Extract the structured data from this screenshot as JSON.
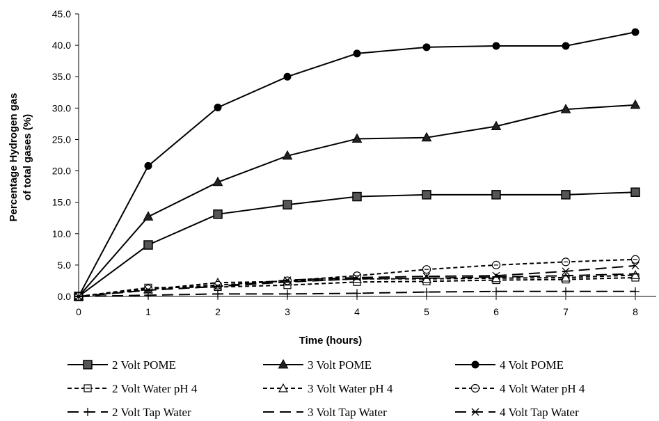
{
  "chart_data": {
    "type": "line",
    "title": "",
    "xlabel": "Time (hours)",
    "ylabel_lines": [
      "Percentage Hydrogen gas",
      "of total gases (%)"
    ],
    "x": [
      0,
      1,
      2,
      3,
      4,
      5,
      6,
      7,
      8
    ],
    "x_tick_labels": [
      "0",
      "1",
      "2",
      "3",
      "4",
      "5",
      "6",
      "7",
      "8"
    ],
    "xlim": [
      0,
      8
    ],
    "ylim": [
      0,
      45
    ],
    "y_ticks": [
      0,
      5,
      10,
      15,
      20,
      25,
      30,
      35,
      40,
      45
    ],
    "y_tick_labels": [
      "0.0",
      "5.0",
      "10.0",
      "15.0",
      "20.0",
      "25.0",
      "30.0",
      "35.0",
      "40.0",
      "45.0"
    ],
    "grid": false,
    "legend_position": "bottom",
    "series": [
      {
        "name": "2 Volt POME",
        "style": "solid",
        "marker": "square-filled",
        "color": "#000000",
        "values": [
          0,
          8.2,
          13.1,
          14.6,
          15.9,
          16.2,
          16.2,
          16.2,
          16.6
        ]
      },
      {
        "name": "3 Volt POME",
        "style": "solid",
        "marker": "triangle-filled",
        "color": "#000000",
        "values": [
          0,
          12.7,
          18.2,
          22.4,
          25.1,
          25.3,
          27.1,
          29.8,
          30.5
        ]
      },
      {
        "name": "4 Volt POME",
        "style": "solid",
        "marker": "circle-filled",
        "color": "#000000",
        "values": [
          0,
          20.8,
          30.1,
          35.0,
          38.7,
          39.7,
          39.9,
          39.9,
          42.1
        ]
      },
      {
        "name": "2 Volt Water pH 4",
        "style": "short-dash",
        "marker": "square-open-line",
        "color": "#000000",
        "values": [
          0,
          1.4,
          1.5,
          1.8,
          2.3,
          2.4,
          2.6,
          2.7,
          3.0
        ]
      },
      {
        "name": "3 Volt Water pH 4",
        "style": "short-dash",
        "marker": "triangle-open",
        "color": "#000000",
        "values": [
          0,
          1.1,
          2.2,
          2.4,
          2.8,
          2.8,
          2.9,
          3.0,
          3.4
        ]
      },
      {
        "name": "4 Volt Water pH 4",
        "style": "short-dash",
        "marker": "circle-open-line",
        "color": "#000000",
        "values": [
          0,
          1.2,
          1.8,
          2.5,
          3.3,
          4.3,
          5.0,
          5.5,
          5.9
        ]
      },
      {
        "name": "2 Volt Tap Water",
        "style": "long-dash",
        "marker": "plus",
        "color": "#000000",
        "values": [
          0,
          0.2,
          0.4,
          0.4,
          0.5,
          0.7,
          0.8,
          0.8,
          0.8
        ]
      },
      {
        "name": "3 Volt Tap Water",
        "style": "long-dash",
        "marker": "dash",
        "color": "#000000",
        "values": [
          0,
          1.0,
          1.6,
          2.3,
          2.8,
          2.9,
          3.1,
          3.3,
          3.6
        ]
      },
      {
        "name": "4 Volt Tap Water",
        "style": "long-dash",
        "marker": "cross",
        "color": "#000000",
        "values": [
          0,
          1.0,
          1.6,
          2.6,
          3.0,
          3.2,
          3.3,
          4.0,
          4.9
        ]
      }
    ]
  }
}
